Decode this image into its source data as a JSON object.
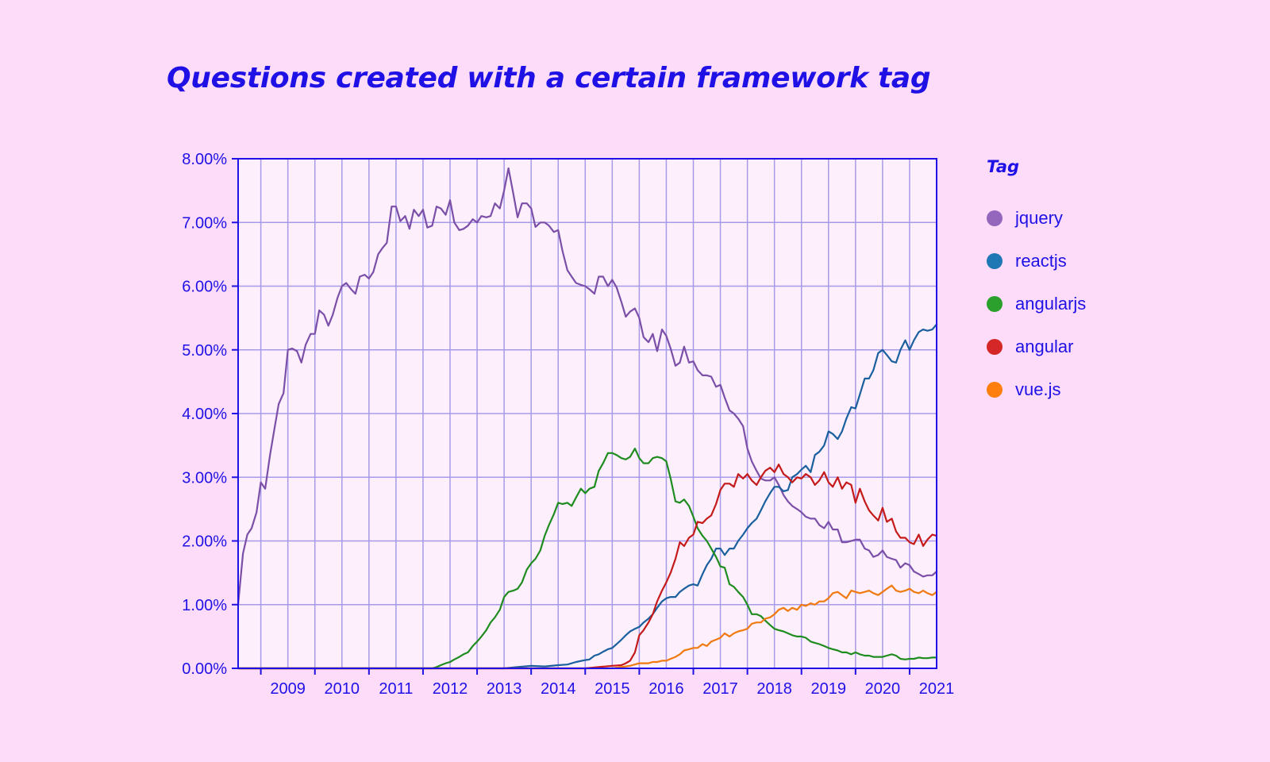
{
  "chart_data": {
    "type": "line",
    "title": "Questions created with a certain framework tag",
    "xlabel": "",
    "ylabel": "",
    "x_ticks": [
      "2009",
      "2010",
      "2011",
      "2012",
      "2013",
      "2014",
      "2015",
      "2016",
      "2017",
      "2018",
      "2019",
      "2020",
      "2021"
    ],
    "y_ticks": [
      "0.00%",
      "1.00%",
      "2.00%",
      "3.00%",
      "4.00%",
      "5.00%",
      "6.00%",
      "7.00%",
      "8.00%"
    ],
    "ylim": [
      0,
      8
    ],
    "xlim": [
      2008.58,
      2021.5
    ],
    "grid": true,
    "legend_title": "Tag",
    "legend_position": "right",
    "series": [
      {
        "name": "jquery",
        "color": "#7b4fa8",
        "legend_color": "#9467bd",
        "x": [
          2008.58,
          2008.67,
          2008.75,
          2008.83,
          2008.92,
          2009.0,
          2009.08,
          2009.17,
          2009.25,
          2009.33,
          2009.42,
          2009.5,
          2009.58,
          2009.67,
          2009.75,
          2009.83,
          2009.92,
          2010.0,
          2010.08,
          2010.17,
          2010.25,
          2010.33,
          2010.42,
          2010.5,
          2010.58,
          2010.67,
          2010.75,
          2010.83,
          2010.92,
          2011.0,
          2011.08,
          2011.17,
          2011.25,
          2011.33,
          2011.42,
          2011.5,
          2011.58,
          2011.67,
          2011.75,
          2011.83,
          2011.92,
          2012.0,
          2012.08,
          2012.17,
          2012.25,
          2012.33,
          2012.42,
          2012.5,
          2012.58,
          2012.67,
          2012.75,
          2012.83,
          2012.92,
          2013.0,
          2013.08,
          2013.17,
          2013.25,
          2013.33,
          2013.42,
          2013.5,
          2013.58,
          2013.67,
          2013.75,
          2013.83,
          2013.92,
          2014.0,
          2014.08,
          2014.17,
          2014.25,
          2014.33,
          2014.42,
          2014.5,
          2014.58,
          2014.67,
          2014.75,
          2014.83,
          2014.92,
          2015.0,
          2015.08,
          2015.17,
          2015.25,
          2015.33,
          2015.42,
          2015.5,
          2015.58,
          2015.67,
          2015.75,
          2015.83,
          2015.92,
          2016.0,
          2016.08,
          2016.17,
          2016.25,
          2016.33,
          2016.42,
          2016.5,
          2016.58,
          2016.67,
          2016.75,
          2016.83,
          2016.92,
          2017.0,
          2017.08,
          2017.17,
          2017.25,
          2017.33,
          2017.42,
          2017.5,
          2017.58,
          2017.67,
          2017.75,
          2017.83,
          2017.92,
          2018.0,
          2018.08,
          2018.17,
          2018.25,
          2018.33,
          2018.42,
          2018.5,
          2018.58,
          2018.67,
          2018.75,
          2018.83,
          2018.92,
          2019.0,
          2019.08,
          2019.17,
          2019.25,
          2019.33,
          2019.42,
          2019.5,
          2019.58,
          2019.67,
          2019.75,
          2019.83,
          2019.92,
          2020.0,
          2020.08,
          2020.17,
          2020.25,
          2020.33,
          2020.42,
          2020.5,
          2020.58,
          2020.67,
          2020.75,
          2020.83,
          2020.92,
          2021.0,
          2021.08,
          2021.17,
          2021.25,
          2021.33,
          2021.42,
          2021.5
        ],
        "values": [
          1.0,
          1.8,
          2.1,
          2.2,
          2.45,
          2.92,
          2.82,
          3.35,
          3.75,
          4.15,
          4.32,
          5.0,
          5.02,
          4.98,
          4.8,
          5.08,
          5.25,
          5.25,
          5.62,
          5.55,
          5.38,
          5.55,
          5.82,
          6.0,
          6.05,
          5.95,
          5.88,
          6.15,
          6.18,
          6.12,
          6.22,
          6.5,
          6.6,
          6.68,
          7.25,
          7.25,
          7.02,
          7.1,
          6.9,
          7.2,
          7.1,
          7.2,
          6.92,
          6.95,
          7.25,
          7.22,
          7.12,
          7.35,
          7.0,
          6.88,
          6.9,
          6.95,
          7.05,
          7.0,
          7.1,
          7.08,
          7.1,
          7.3,
          7.22,
          7.5,
          7.85,
          7.45,
          7.08,
          7.3,
          7.3,
          7.22,
          6.93,
          7.0,
          7.0,
          6.95,
          6.85,
          6.88,
          6.55,
          6.25,
          6.15,
          6.05,
          6.02,
          6.0,
          5.95,
          5.88,
          6.15,
          6.15,
          6.0,
          6.1,
          5.98,
          5.75,
          5.52,
          5.6,
          5.65,
          5.5,
          5.2,
          5.12,
          5.25,
          4.98,
          5.32,
          5.22,
          5.02,
          4.75,
          4.8,
          5.05,
          4.8,
          4.82,
          4.68,
          4.6,
          4.6,
          4.58,
          4.42,
          4.45,
          4.25,
          4.05,
          4.0,
          3.92,
          3.8,
          3.45,
          3.25,
          3.1,
          2.98,
          2.95,
          2.95,
          3.0,
          2.88,
          2.72,
          2.62,
          2.55,
          2.5,
          2.45,
          2.38,
          2.35,
          2.35,
          2.25,
          2.2,
          2.3,
          2.18,
          2.18,
          1.98,
          1.98,
          2.0,
          2.02,
          2.02,
          1.88,
          1.85,
          1.75,
          1.78,
          1.85,
          1.75,
          1.72,
          1.7,
          1.58,
          1.65,
          1.62,
          1.52,
          1.48,
          1.44,
          1.46,
          1.46,
          1.52
        ]
      },
      {
        "name": "reactjs",
        "color": "#1a5f9e",
        "legend_color": "#1f77b4",
        "x": [
          2008.58,
          2013.5,
          2013.75,
          2014.0,
          2014.25,
          2014.5,
          2014.67,
          2014.83,
          2015.0,
          2015.08,
          2015.17,
          2015.25,
          2015.33,
          2015.42,
          2015.5,
          2015.58,
          2015.67,
          2015.75,
          2015.83,
          2015.92,
          2016.0,
          2016.08,
          2016.17,
          2016.25,
          2016.33,
          2016.42,
          2016.5,
          2016.58,
          2016.67,
          2016.75,
          2016.83,
          2016.92,
          2017.0,
          2017.08,
          2017.17,
          2017.25,
          2017.33,
          2017.42,
          2017.5,
          2017.58,
          2017.67,
          2017.75,
          2017.83,
          2017.92,
          2018.0,
          2018.08,
          2018.17,
          2018.25,
          2018.33,
          2018.42,
          2018.5,
          2018.58,
          2018.67,
          2018.75,
          2018.83,
          2018.92,
          2019.0,
          2019.08,
          2019.17,
          2019.25,
          2019.33,
          2019.42,
          2019.5,
          2019.58,
          2019.67,
          2019.75,
          2019.83,
          2019.92,
          2020.0,
          2020.08,
          2020.17,
          2020.25,
          2020.33,
          2020.42,
          2020.5,
          2020.58,
          2020.67,
          2020.75,
          2020.83,
          2020.92,
          2021.0,
          2021.08,
          2021.17,
          2021.25,
          2021.33,
          2021.42,
          2021.5
        ],
        "values": [
          0.0,
          0.0,
          0.02,
          0.04,
          0.03,
          0.05,
          0.06,
          0.1,
          0.13,
          0.14,
          0.2,
          0.22,
          0.26,
          0.3,
          0.32,
          0.38,
          0.45,
          0.52,
          0.58,
          0.62,
          0.65,
          0.72,
          0.78,
          0.85,
          0.95,
          1.05,
          1.1,
          1.12,
          1.12,
          1.2,
          1.25,
          1.3,
          1.32,
          1.3,
          1.48,
          1.62,
          1.72,
          1.88,
          1.88,
          1.78,
          1.88,
          1.88,
          2.0,
          2.1,
          2.2,
          2.28,
          2.35,
          2.48,
          2.62,
          2.75,
          2.85,
          2.85,
          2.78,
          2.8,
          3.0,
          3.05,
          3.12,
          3.18,
          3.08,
          3.35,
          3.4,
          3.5,
          3.72,
          3.68,
          3.6,
          3.72,
          3.92,
          4.1,
          4.08,
          4.3,
          4.55,
          4.55,
          4.68,
          4.95,
          5.0,
          4.92,
          4.82,
          4.8,
          5.0,
          5.15,
          5.0,
          5.15,
          5.28,
          5.32,
          5.3,
          5.32,
          5.4
        ]
      },
      {
        "name": "angularjs",
        "color": "#1f8c1f",
        "legend_color": "#2ca02c",
        "x": [
          2008.58,
          2012.17,
          2012.25,
          2012.33,
          2012.42,
          2012.5,
          2012.58,
          2012.67,
          2012.75,
          2012.83,
          2012.92,
          2013.0,
          2013.08,
          2013.17,
          2013.25,
          2013.33,
          2013.42,
          2013.5,
          2013.58,
          2013.67,
          2013.75,
          2013.83,
          2013.92,
          2014.0,
          2014.08,
          2014.17,
          2014.25,
          2014.33,
          2014.42,
          2014.5,
          2014.58,
          2014.67,
          2014.75,
          2014.83,
          2014.92,
          2015.0,
          2015.08,
          2015.17,
          2015.25,
          2015.33,
          2015.42,
          2015.5,
          2015.58,
          2015.67,
          2015.75,
          2015.83,
          2015.92,
          2016.0,
          2016.08,
          2016.17,
          2016.25,
          2016.33,
          2016.42,
          2016.5,
          2016.58,
          2016.67,
          2016.75,
          2016.83,
          2016.92,
          2017.0,
          2017.08,
          2017.17,
          2017.25,
          2017.33,
          2017.42,
          2017.5,
          2017.58,
          2017.67,
          2017.75,
          2017.83,
          2017.92,
          2018.0,
          2018.08,
          2018.17,
          2018.25,
          2018.33,
          2018.42,
          2018.5,
          2018.58,
          2018.67,
          2018.75,
          2018.83,
          2018.92,
          2019.0,
          2019.08,
          2019.17,
          2019.25,
          2019.33,
          2019.42,
          2019.5,
          2019.58,
          2019.67,
          2019.75,
          2019.83,
          2019.92,
          2020.0,
          2020.08,
          2020.17,
          2020.25,
          2020.33,
          2020.42,
          2020.5,
          2020.58,
          2020.67,
          2020.75,
          2020.83,
          2020.92,
          2021.0,
          2021.08,
          2021.17,
          2021.25,
          2021.33,
          2021.42,
          2021.5
        ],
        "values": [
          0.0,
          0.0,
          0.02,
          0.05,
          0.08,
          0.1,
          0.14,
          0.18,
          0.22,
          0.25,
          0.35,
          0.42,
          0.5,
          0.6,
          0.72,
          0.8,
          0.92,
          1.12,
          1.2,
          1.22,
          1.25,
          1.35,
          1.55,
          1.65,
          1.72,
          1.85,
          2.08,
          2.25,
          2.42,
          2.6,
          2.58,
          2.6,
          2.55,
          2.68,
          2.82,
          2.75,
          2.82,
          2.85,
          3.1,
          3.22,
          3.38,
          3.38,
          3.35,
          3.3,
          3.28,
          3.32,
          3.45,
          3.3,
          3.22,
          3.22,
          3.3,
          3.32,
          3.3,
          3.25,
          2.98,
          2.62,
          2.6,
          2.65,
          2.55,
          2.38,
          2.2,
          2.08,
          2.0,
          1.88,
          1.75,
          1.6,
          1.58,
          1.32,
          1.28,
          1.2,
          1.12,
          1.0,
          0.85,
          0.85,
          0.82,
          0.75,
          0.68,
          0.62,
          0.6,
          0.58,
          0.55,
          0.52,
          0.5,
          0.5,
          0.48,
          0.42,
          0.4,
          0.38,
          0.35,
          0.32,
          0.3,
          0.28,
          0.25,
          0.25,
          0.22,
          0.25,
          0.22,
          0.2,
          0.2,
          0.18,
          0.18,
          0.18,
          0.2,
          0.22,
          0.2,
          0.15,
          0.14,
          0.15,
          0.15,
          0.17,
          0.16,
          0.16,
          0.17,
          0.17
        ]
      },
      {
        "name": "angular",
        "color": "#c51a1a",
        "legend_color": "#d62728",
        "x": [
          2008.58,
          2015.0,
          2015.25,
          2015.5,
          2015.67,
          2015.75,
          2015.83,
          2015.92,
          2016.0,
          2016.08,
          2016.17,
          2016.25,
          2016.33,
          2016.42,
          2016.5,
          2016.58,
          2016.67,
          2016.75,
          2016.83,
          2016.92,
          2017.0,
          2017.08,
          2017.17,
          2017.25,
          2017.33,
          2017.42,
          2017.5,
          2017.58,
          2017.67,
          2017.75,
          2017.83,
          2017.92,
          2018.0,
          2018.08,
          2018.17,
          2018.25,
          2018.33,
          2018.42,
          2018.5,
          2018.58,
          2018.67,
          2018.75,
          2018.83,
          2018.92,
          2019.0,
          2019.08,
          2019.17,
          2019.25,
          2019.33,
          2019.42,
          2019.5,
          2019.58,
          2019.67,
          2019.75,
          2019.83,
          2019.92,
          2020.0,
          2020.08,
          2020.17,
          2020.25,
          2020.33,
          2020.42,
          2020.5,
          2020.58,
          2020.67,
          2020.75,
          2020.83,
          2020.92,
          2021.0,
          2021.08,
          2021.17,
          2021.25,
          2021.33,
          2021.42,
          2021.5
        ],
        "values": [
          0.0,
          0.0,
          0.02,
          0.04,
          0.05,
          0.08,
          0.12,
          0.25,
          0.52,
          0.6,
          0.72,
          0.85,
          1.05,
          1.22,
          1.35,
          1.5,
          1.72,
          1.98,
          1.92,
          2.05,
          2.1,
          2.3,
          2.28,
          2.35,
          2.4,
          2.58,
          2.8,
          2.9,
          2.9,
          2.85,
          3.05,
          2.98,
          3.05,
          2.95,
          2.88,
          3.0,
          3.1,
          3.15,
          3.08,
          3.2,
          3.05,
          3.0,
          2.92,
          3.0,
          2.98,
          3.05,
          3.0,
          2.88,
          2.95,
          3.08,
          2.92,
          2.85,
          3.0,
          2.82,
          2.92,
          2.88,
          2.6,
          2.82,
          2.62,
          2.48,
          2.4,
          2.32,
          2.52,
          2.3,
          2.35,
          2.15,
          2.05,
          2.05,
          1.98,
          1.95,
          2.1,
          1.92,
          2.02,
          2.1,
          2.08
        ]
      },
      {
        "name": "vue.js",
        "color": "#f07a10",
        "legend_color": "#ff7f0e",
        "x": [
          2008.58,
          2015.5,
          2015.83,
          2016.0,
          2016.08,
          2016.17,
          2016.25,
          2016.33,
          2016.42,
          2016.5,
          2016.58,
          2016.67,
          2016.75,
          2016.83,
          2016.92,
          2017.0,
          2017.08,
          2017.17,
          2017.25,
          2017.33,
          2017.42,
          2017.5,
          2017.58,
          2017.67,
          2017.75,
          2017.83,
          2017.92,
          2018.0,
          2018.08,
          2018.17,
          2018.25,
          2018.33,
          2018.42,
          2018.5,
          2018.58,
          2018.67,
          2018.75,
          2018.83,
          2018.92,
          2019.0,
          2019.08,
          2019.17,
          2019.25,
          2019.33,
          2019.42,
          2019.5,
          2019.58,
          2019.67,
          2019.75,
          2019.83,
          2019.92,
          2020.0,
          2020.08,
          2020.17,
          2020.25,
          2020.33,
          2020.42,
          2020.5,
          2020.58,
          2020.67,
          2020.75,
          2020.83,
          2020.92,
          2021.0,
          2021.08,
          2021.17,
          2021.25,
          2021.33,
          2021.42,
          2021.5
        ],
        "values": [
          0.0,
          0.0,
          0.04,
          0.08,
          0.08,
          0.08,
          0.1,
          0.1,
          0.12,
          0.12,
          0.15,
          0.18,
          0.22,
          0.28,
          0.3,
          0.32,
          0.32,
          0.38,
          0.35,
          0.42,
          0.45,
          0.48,
          0.55,
          0.5,
          0.55,
          0.58,
          0.6,
          0.62,
          0.7,
          0.72,
          0.72,
          0.78,
          0.8,
          0.85,
          0.92,
          0.95,
          0.9,
          0.95,
          0.92,
          1.0,
          0.98,
          1.02,
          1.0,
          1.05,
          1.05,
          1.1,
          1.18,
          1.2,
          1.15,
          1.1,
          1.22,
          1.2,
          1.18,
          1.2,
          1.22,
          1.18,
          1.15,
          1.2,
          1.25,
          1.3,
          1.22,
          1.2,
          1.22,
          1.25,
          1.2,
          1.18,
          1.22,
          1.18,
          1.15,
          1.2
        ]
      }
    ]
  }
}
